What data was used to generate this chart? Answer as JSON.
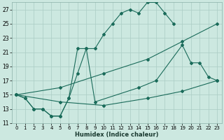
{
  "xlabel": "Humidex (Indice chaleur)",
  "background_color": "#cce8e0",
  "line_color": "#1a6b5a",
  "grid_color": "#aaccc4",
  "xlim": [
    -0.5,
    23.5
  ],
  "ylim": [
    11,
    28
  ],
  "xticks": [
    0,
    1,
    2,
    3,
    4,
    5,
    6,
    7,
    8,
    9,
    10,
    11,
    12,
    13,
    14,
    15,
    16,
    17,
    18,
    19,
    20,
    21,
    22,
    23
  ],
  "yticks": [
    11,
    13,
    15,
    17,
    19,
    21,
    23,
    25,
    27
  ],
  "lines": [
    {
      "x": [
        0,
        1,
        2,
        3,
        4,
        5,
        6,
        7,
        8,
        9,
        10,
        11,
        12,
        13,
        14,
        15,
        16,
        17,
        18
      ],
      "y": [
        15,
        14.5,
        13,
        13,
        12,
        12,
        14.5,
        18,
        21.5,
        21.5,
        23.5,
        25,
        26.5,
        27,
        26.5,
        28,
        28,
        26.5,
        25
      ]
    },
    {
      "x": [
        0,
        1,
        2,
        3,
        4,
        5,
        6,
        7,
        8,
        9,
        14,
        16,
        19,
        20,
        21,
        22,
        23
      ],
      "y": [
        15,
        14.5,
        13,
        13,
        12,
        12,
        14.5,
        21.5,
        21.5,
        14,
        16,
        17,
        22,
        19.5,
        19.5,
        17.5,
        17
      ]
    },
    {
      "x": [
        0,
        5,
        10,
        15,
        19,
        23
      ],
      "y": [
        15,
        16,
        18,
        20,
        22.5,
        25
      ]
    },
    {
      "x": [
        0,
        5,
        10,
        15,
        19,
        23
      ],
      "y": [
        15,
        14,
        13.5,
        14.5,
        15.5,
        17
      ]
    }
  ]
}
